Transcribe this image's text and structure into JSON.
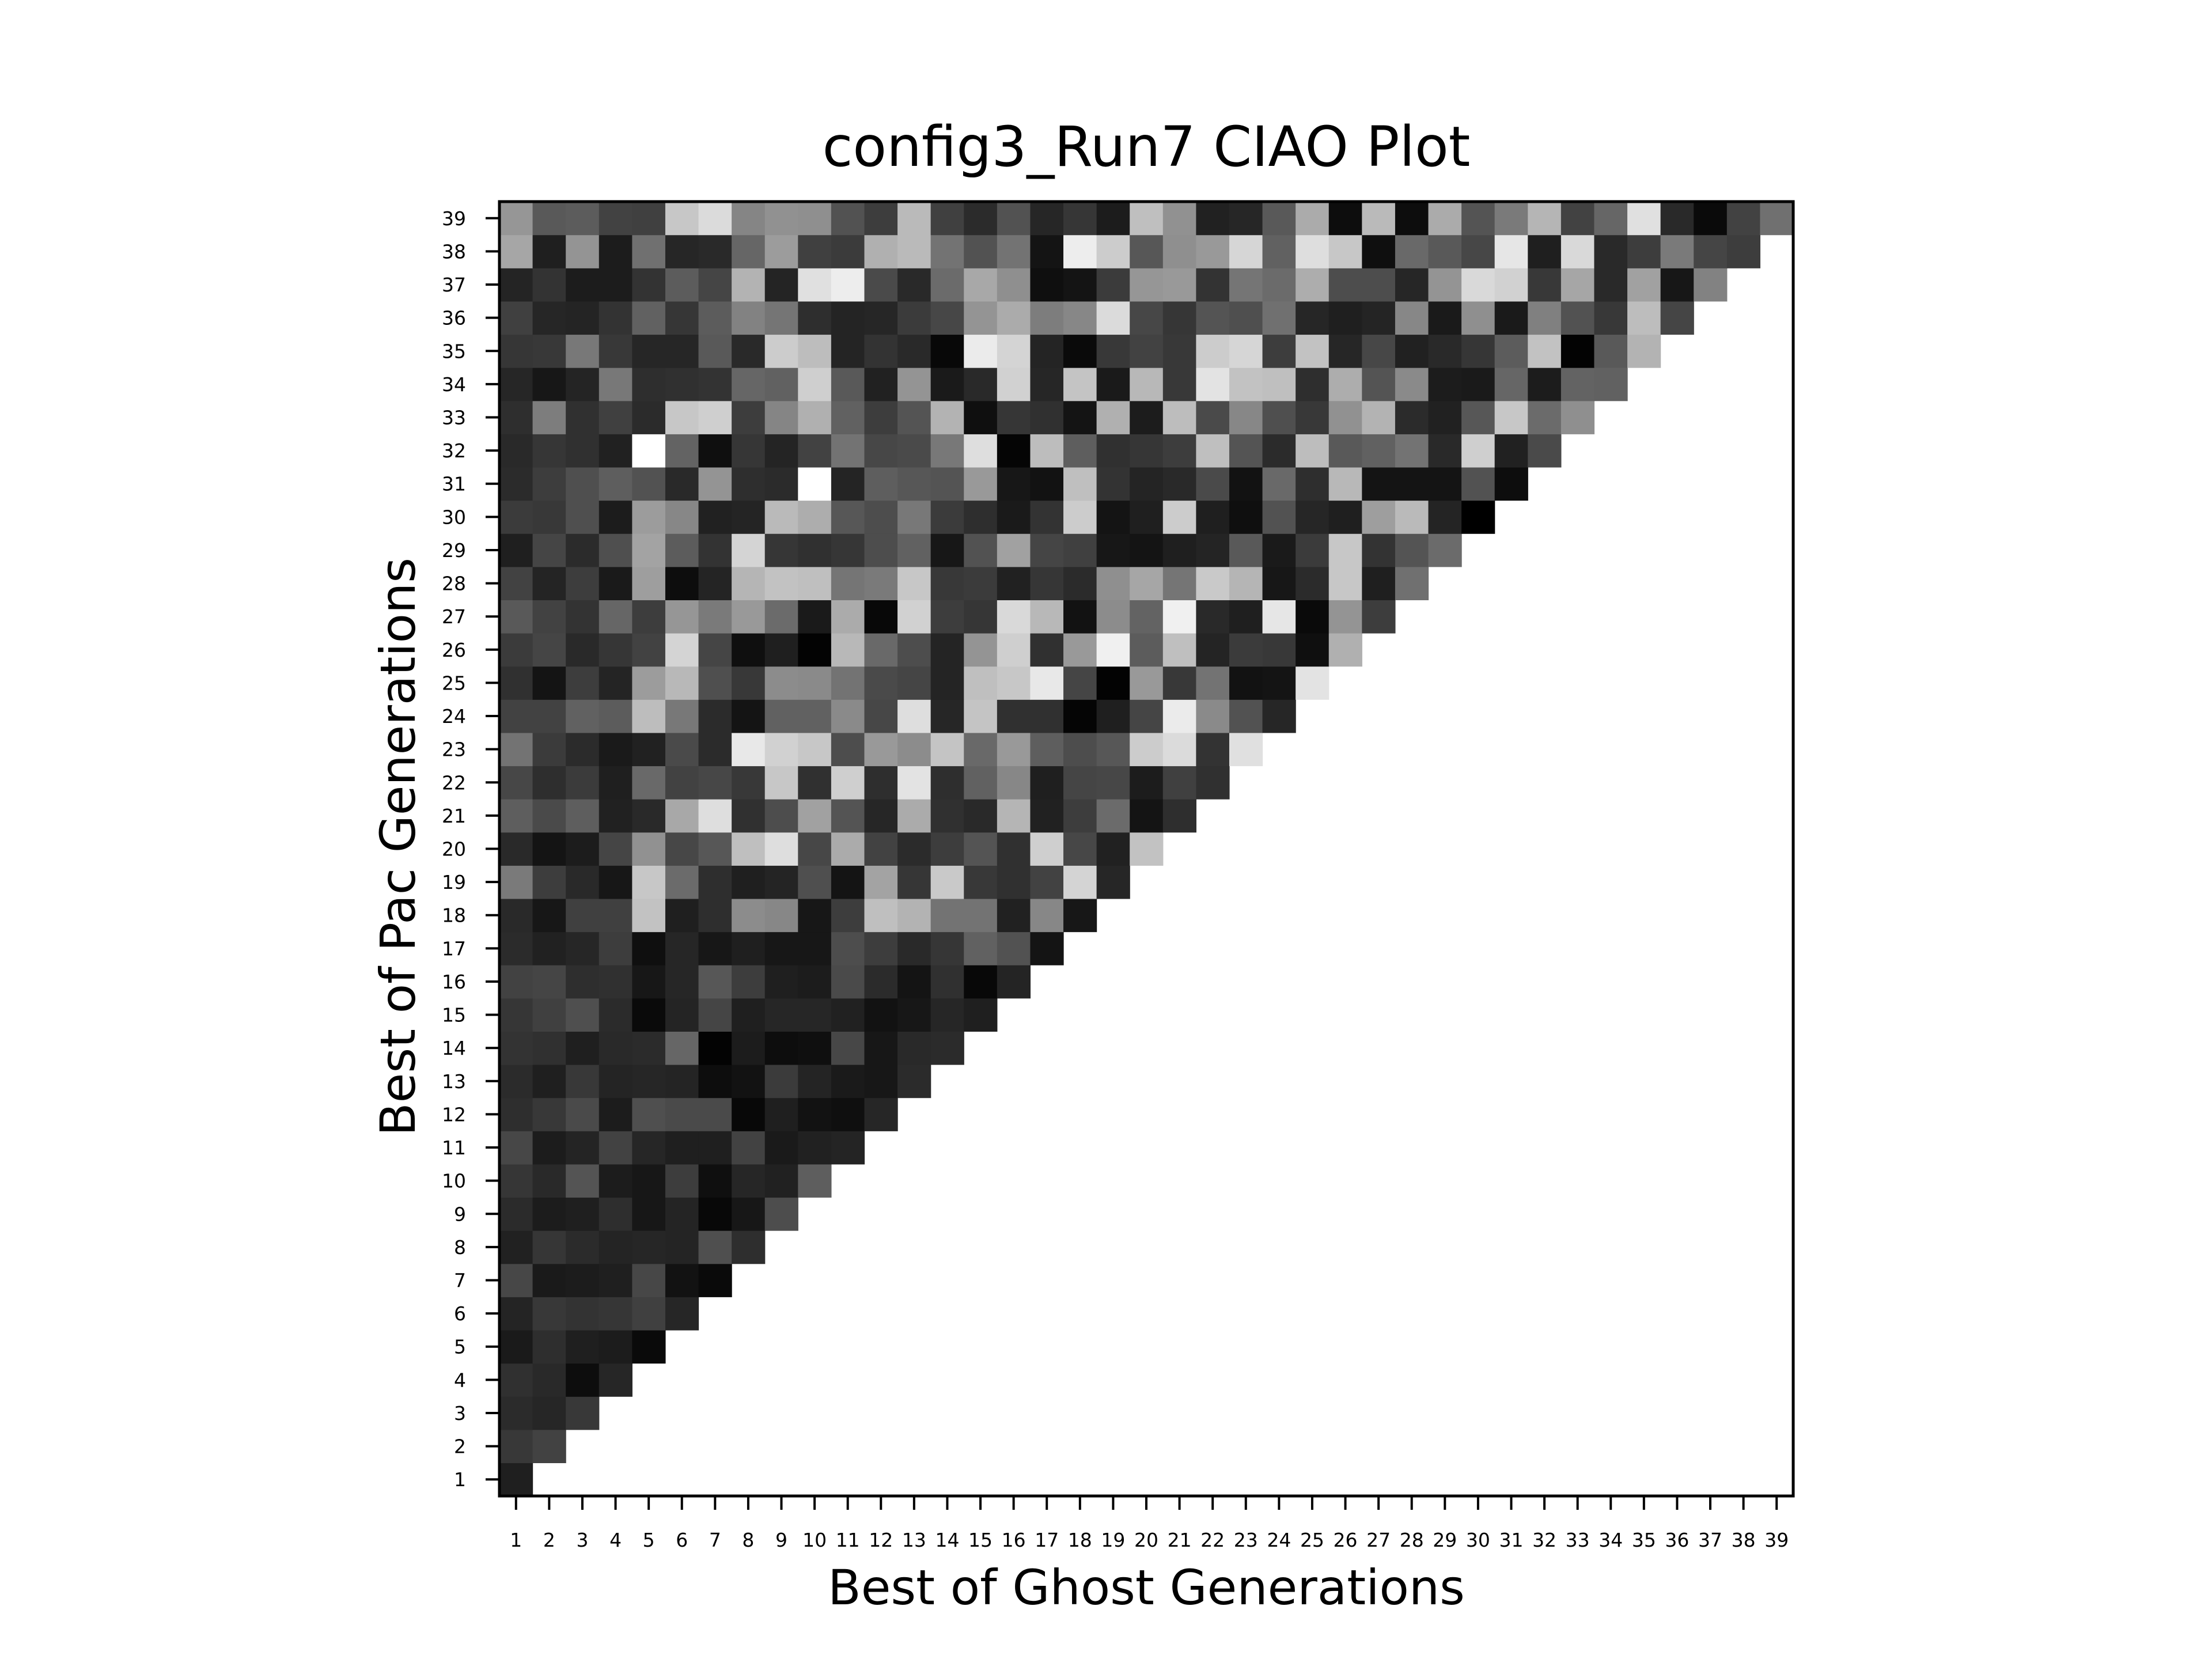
{
  "chart_data": {
    "type": "heatmap",
    "title": "config3_Run7 CIAO Plot",
    "xlabel": "Best of Ghost Generations",
    "ylabel": "Best of Pac Generations",
    "x_categories": [
      "1",
      "2",
      "3",
      "4",
      "5",
      "6",
      "7",
      "8",
      "9",
      "10",
      "11",
      "12",
      "13",
      "14",
      "15",
      "16",
      "17",
      "18",
      "19",
      "20",
      "21",
      "22",
      "23",
      "24",
      "25",
      "26",
      "27",
      "28",
      "29",
      "30",
      "31",
      "32",
      "33",
      "34",
      "35",
      "36",
      "37",
      "38",
      "39"
    ],
    "y_categories": [
      "1",
      "2",
      "3",
      "4",
      "5",
      "6",
      "7",
      "8",
      "9",
      "10",
      "11",
      "12",
      "13",
      "14",
      "15",
      "16",
      "17",
      "18",
      "19",
      "20",
      "21",
      "22",
      "23",
      "24",
      "25",
      "26",
      "27",
      "28",
      "29",
      "30",
      "31",
      "32",
      "33",
      "34",
      "35",
      "36",
      "37",
      "38",
      "39"
    ],
    "value_range": [
      0,
      1
    ],
    "colormap": "gray (0 = black, 1 = white)",
    "mask": "cells with ghost generation > pac generation are empty (white)",
    "grid": false,
    "rows": [
      [
        0.12
      ],
      [
        0.22,
        0.26
      ],
      [
        0.17,
        0.15,
        0.22
      ],
      [
        0.19,
        0.16,
        0.05,
        0.15
      ],
      [
        0.1,
        0.18,
        0.12,
        0.11,
        0.04
      ],
      [
        0.14,
        0.22,
        0.2,
        0.21,
        0.25,
        0.15
      ],
      [
        0.28,
        0.1,
        0.11,
        0.12,
        0.28,
        0.07,
        0.04
      ],
      [
        0.13,
        0.21,
        0.17,
        0.14,
        0.15,
        0.14,
        0.31,
        0.18
      ],
      [
        0.17,
        0.11,
        0.12,
        0.18,
        0.09,
        0.14,
        0.03,
        0.09,
        0.3
      ],
      [
        0.21,
        0.16,
        0.33,
        0.11,
        0.09,
        0.24,
        0.06,
        0.15,
        0.13,
        0.37
      ],
      [
        0.28,
        0.11,
        0.14,
        0.26,
        0.15,
        0.12,
        0.12,
        0.26,
        0.1,
        0.13,
        0.14
      ],
      [
        0.18,
        0.22,
        0.29,
        0.11,
        0.31,
        0.29,
        0.29,
        0.03,
        0.12,
        0.07,
        0.06,
        0.15
      ],
      [
        0.17,
        0.12,
        0.22,
        0.14,
        0.15,
        0.14,
        0.05,
        0.07,
        0.23,
        0.14,
        0.1,
        0.09,
        0.17
      ],
      [
        0.2,
        0.19,
        0.12,
        0.16,
        0.17,
        0.4,
        0.01,
        0.11,
        0.05,
        0.06,
        0.28,
        0.09,
        0.16,
        0.17
      ],
      [
        0.21,
        0.25,
        0.31,
        0.17,
        0.04,
        0.14,
        0.27,
        0.12,
        0.15,
        0.15,
        0.13,
        0.07,
        0.09,
        0.15,
        0.12
      ],
      [
        0.26,
        0.27,
        0.18,
        0.19,
        0.09,
        0.15,
        0.34,
        0.24,
        0.12,
        0.11,
        0.29,
        0.17,
        0.08,
        0.19,
        0.03,
        0.14
      ],
      [
        0.17,
        0.13,
        0.15,
        0.24,
        0.06,
        0.15,
        0.09,
        0.12,
        0.09,
        0.09,
        0.3,
        0.24,
        0.16,
        0.21,
        0.38,
        0.32,
        0.08
      ],
      [
        0.16,
        0.09,
        0.25,
        0.25,
        0.76,
        0.12,
        0.18,
        0.55,
        0.53,
        0.09,
        0.24,
        0.75,
        0.7,
        0.45,
        0.45,
        0.13,
        0.53,
        0.09
      ],
      [
        0.48,
        0.24,
        0.16,
        0.09,
        0.78,
        0.42,
        0.18,
        0.12,
        0.14,
        0.31,
        0.08,
        0.64,
        0.21,
        0.79,
        0.22,
        0.19,
        0.26,
        0.83,
        0.15
      ],
      [
        0.16,
        0.08,
        0.11,
        0.27,
        0.57,
        0.28,
        0.34,
        0.75,
        0.87,
        0.28,
        0.67,
        0.26,
        0.17,
        0.24,
        0.33,
        0.19,
        0.81,
        0.28,
        0.13,
        0.76
      ],
      [
        0.37,
        0.29,
        0.37,
        0.13,
        0.16,
        0.66,
        0.87,
        0.19,
        0.3,
        0.63,
        0.33,
        0.15,
        0.67,
        0.19,
        0.16,
        0.71,
        0.13,
        0.24,
        0.42,
        0.08,
        0.18
      ],
      [
        0.28,
        0.18,
        0.23,
        0.12,
        0.41,
        0.26,
        0.28,
        0.22,
        0.78,
        0.19,
        0.81,
        0.18,
        0.89,
        0.18,
        0.38,
        0.53,
        0.12,
        0.27,
        0.28,
        0.11,
        0.25,
        0.19
      ],
      [
        0.45,
        0.23,
        0.17,
        0.1,
        0.13,
        0.29,
        0.17,
        0.91,
        0.82,
        0.78,
        0.3,
        0.6,
        0.55,
        0.77,
        0.41,
        0.6,
        0.37,
        0.3,
        0.34,
        0.8,
        0.86,
        0.2,
        0.88
      ],
      [
        0.26,
        0.26,
        0.38,
        0.36,
        0.74,
        0.47,
        0.17,
        0.08,
        0.38,
        0.38,
        0.54,
        0.28,
        0.87,
        0.15,
        0.77,
        0.19,
        0.19,
        0.02,
        0.12,
        0.27,
        0.92,
        0.54,
        0.32,
        0.15
      ],
      [
        0.19,
        0.08,
        0.24,
        0.14,
        0.61,
        0.72,
        0.31,
        0.22,
        0.55,
        0.54,
        0.45,
        0.29,
        0.27,
        0.14,
        0.75,
        0.78,
        0.91,
        0.27,
        0.01,
        0.6,
        0.22,
        0.45,
        0.07,
        0.08,
        0.89
      ],
      [
        0.23,
        0.27,
        0.16,
        0.21,
        0.26,
        0.83,
        0.27,
        0.06,
        0.12,
        0.01,
        0.72,
        0.41,
        0.3,
        0.14,
        0.58,
        0.81,
        0.19,
        0.6,
        0.94,
        0.36,
        0.75,
        0.14,
        0.23,
        0.22,
        0.06,
        0.69
      ],
      [
        0.35,
        0.26,
        0.2,
        0.4,
        0.24,
        0.59,
        0.48,
        0.6,
        0.42,
        0.1,
        0.67,
        0.03,
        0.82,
        0.24,
        0.21,
        0.85,
        0.72,
        0.07,
        0.55,
        0.39,
        0.94,
        0.16,
        0.12,
        0.9,
        0.04,
        0.58,
        0.24
      ],
      [
        0.26,
        0.14,
        0.24,
        0.1,
        0.62,
        0.05,
        0.14,
        0.71,
        0.76,
        0.75,
        0.46,
        0.48,
        0.78,
        0.22,
        0.23,
        0.13,
        0.21,
        0.17,
        0.56,
        0.65,
        0.46,
        0.79,
        0.71,
        0.09,
        0.17,
        0.78,
        0.12,
        0.44
      ],
      [
        0.12,
        0.27,
        0.17,
        0.31,
        0.64,
        0.36,
        0.2,
        0.83,
        0.21,
        0.19,
        0.21,
        0.3,
        0.38,
        0.09,
        0.32,
        0.63,
        0.27,
        0.25,
        0.09,
        0.08,
        0.12,
        0.14,
        0.35,
        0.1,
        0.23,
        0.78,
        0.2,
        0.33,
        0.42
      ],
      [
        0.23,
        0.22,
        0.31,
        0.11,
        0.61,
        0.53,
        0.13,
        0.14,
        0.73,
        0.68,
        0.34,
        0.3,
        0.47,
        0.23,
        0.18,
        0.1,
        0.2,
        0.8,
        0.08,
        0.12,
        0.8,
        0.12,
        0.06,
        0.32,
        0.15,
        0.12,
        0.62,
        0.73,
        0.14,
        0.0
      ],
      [
        0.17,
        0.24,
        0.31,
        0.37,
        0.32,
        0.16,
        0.58,
        0.18,
        0.17,
        1.0,
        0.14,
        0.37,
        0.34,
        0.33,
        0.6,
        0.09,
        0.07,
        0.75,
        0.2,
        0.14,
        0.16,
        0.29,
        0.07,
        0.41,
        0.18,
        0.72,
        0.08,
        0.08,
        0.08,
        0.32,
        0.05
      ],
      [
        0.16,
        0.21,
        0.19,
        0.13,
        1.0,
        0.39,
        0.06,
        0.21,
        0.14,
        0.26,
        0.45,
        0.28,
        0.29,
        0.47,
        0.87,
        0.02,
        0.74,
        0.37,
        0.19,
        0.21,
        0.24,
        0.75,
        0.33,
        0.17,
        0.74,
        0.35,
        0.38,
        0.45,
        0.16,
        0.81,
        0.13,
        0.29
      ],
      [
        0.18,
        0.49,
        0.19,
        0.25,
        0.17,
        0.78,
        0.81,
        0.24,
        0.52,
        0.69,
        0.38,
        0.24,
        0.33,
        0.7,
        0.06,
        0.21,
        0.19,
        0.08,
        0.69,
        0.11,
        0.74,
        0.29,
        0.53,
        0.31,
        0.22,
        0.57,
        0.7,
        0.17,
        0.13,
        0.34,
        0.78,
        0.42,
        0.56
      ],
      [
        0.15,
        0.09,
        0.14,
        0.47,
        0.18,
        0.19,
        0.2,
        0.4,
        0.38,
        0.81,
        0.35,
        0.13,
        0.58,
        0.1,
        0.16,
        0.82,
        0.15,
        0.77,
        0.1,
        0.72,
        0.22,
        0.89,
        0.76,
        0.75,
        0.18,
        0.68,
        0.33,
        0.54,
        0.11,
        0.1,
        0.4,
        0.11,
        0.39,
        0.38
      ],
      [
        0.21,
        0.22,
        0.47,
        0.22,
        0.15,
        0.15,
        0.35,
        0.16,
        0.8,
        0.74,
        0.14,
        0.2,
        0.16,
        0.03,
        0.92,
        0.83,
        0.14,
        0.04,
        0.22,
        0.26,
        0.22,
        0.8,
        0.84,
        0.24,
        0.76,
        0.15,
        0.28,
        0.13,
        0.16,
        0.21,
        0.36,
        0.76,
        0.01,
        0.35,
        0.7
      ],
      [
        0.25,
        0.15,
        0.14,
        0.2,
        0.38,
        0.21,
        0.36,
        0.51,
        0.46,
        0.18,
        0.14,
        0.15,
        0.23,
        0.28,
        0.58,
        0.67,
        0.49,
        0.53,
        0.86,
        0.28,
        0.21,
        0.33,
        0.31,
        0.44,
        0.15,
        0.12,
        0.14,
        0.53,
        0.1,
        0.56,
        0.1,
        0.5,
        0.32,
        0.22,
        0.74,
        0.27
      ],
      [
        0.14,
        0.2,
        0.11,
        0.11,
        0.2,
        0.36,
        0.27,
        0.7,
        0.14,
        0.88,
        0.93,
        0.29,
        0.16,
        0.42,
        0.66,
        0.56,
        0.06,
        0.08,
        0.23,
        0.59,
        0.6,
        0.2,
        0.46,
        0.42,
        0.68,
        0.3,
        0.3,
        0.15,
        0.58,
        0.85,
        0.82,
        0.22,
        0.65,
        0.16,
        0.63,
        0.09,
        0.51
      ],
      [
        0.65,
        0.12,
        0.58,
        0.11,
        0.44,
        0.15,
        0.16,
        0.4,
        0.61,
        0.25,
        0.23,
        0.69,
        0.73,
        0.45,
        0.32,
        0.45,
        0.08,
        0.93,
        0.8,
        0.34,
        0.56,
        0.6,
        0.84,
        0.38,
        0.87,
        0.78,
        0.06,
        0.41,
        0.35,
        0.28,
        0.9,
        0.12,
        0.85,
        0.16,
        0.24,
        0.48,
        0.27,
        0.24
      ],
      [
        0.59,
        0.35,
        0.36,
        0.26,
        0.25,
        0.78,
        0.86,
        0.52,
        0.57,
        0.56,
        0.32,
        0.24,
        0.73,
        0.25,
        0.17,
        0.32,
        0.15,
        0.21,
        0.11,
        0.75,
        0.57,
        0.13,
        0.15,
        0.35,
        0.67,
        0.05,
        0.73,
        0.05,
        0.67,
        0.33,
        0.48,
        0.71,
        0.26,
        0.4,
        0.88,
        0.16,
        0.04,
        0.26,
        0.44
      ]
    ]
  }
}
